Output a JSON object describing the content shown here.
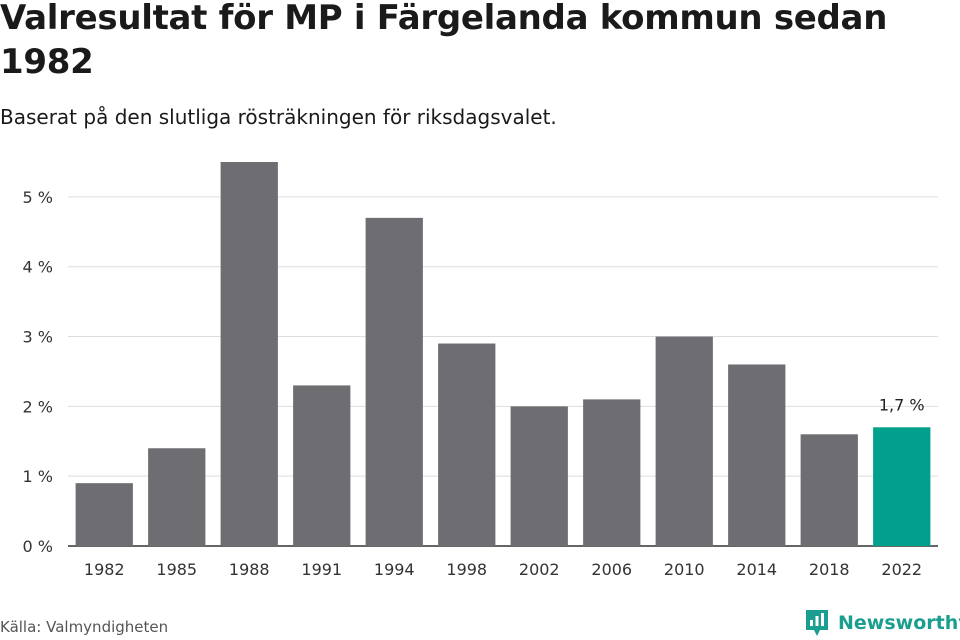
{
  "title": "Valresultat för MP i Färgelanda kommun sedan 1982",
  "subtitle": "Baserat på den slutliga rösträkningen för riksdagsvalet.",
  "source": "Källa: Valmyndigheten",
  "brand": {
    "name": "Newsworthy",
    "icon": "newsworthy-logo-icon"
  },
  "colors": {
    "bar": "#6e6d72",
    "highlight": "#00a08c",
    "grid": "#dddddd",
    "axis": "#333333"
  },
  "chart_data": {
    "type": "bar",
    "title": "Valresultat för MP i Färgelanda kommun sedan 1982",
    "subtitle": "Baserat på den slutliga rösträkningen för riksdagsvalet.",
    "xlabel": "",
    "ylabel": "",
    "categories": [
      "1982",
      "1985",
      "1988",
      "1991",
      "1994",
      "1998",
      "2002",
      "2006",
      "2010",
      "2014",
      "2018",
      "2022"
    ],
    "values": [
      0.9,
      1.4,
      5.5,
      2.3,
      4.7,
      2.9,
      2.0,
      2.1,
      3.0,
      2.6,
      1.6,
      1.7
    ],
    "unit": "%",
    "ylim": [
      0,
      5.5
    ],
    "yticks": [
      0,
      1,
      2,
      3,
      4,
      5
    ],
    "ytick_labels": [
      "0 %",
      "1 %",
      "2 %",
      "3 %",
      "4 %",
      "5 %"
    ],
    "highlight_index": 11,
    "data_labels": [
      {
        "index": 11,
        "text": "1,7 %"
      }
    ],
    "grid": true,
    "legend": "none"
  }
}
